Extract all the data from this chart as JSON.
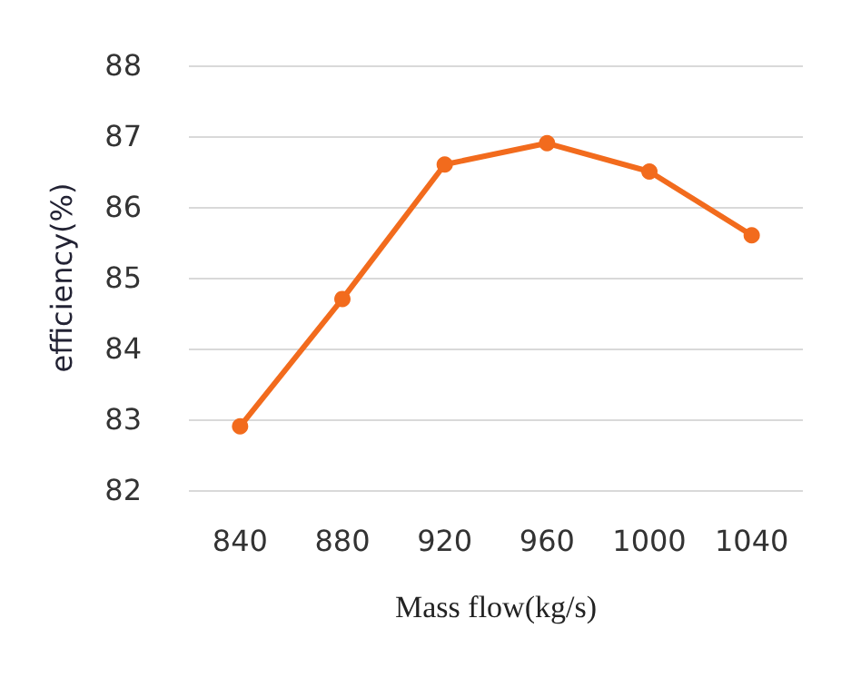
{
  "chart_data": {
    "type": "line",
    "xlabel": "Mass flow(kg/s)",
    "ylabel": "efficiency(%)",
    "categories": [
      "840",
      "880",
      "920",
      "960",
      "1000",
      "1040"
    ],
    "series": [
      {
        "color": "#f26b1d",
        "values": [
          82.9,
          84.7,
          86.6,
          86.9,
          86.5,
          85.6
        ]
      }
    ],
    "ylim": [
      82,
      88
    ],
    "yticks": [
      82,
      83,
      84,
      85,
      86,
      87,
      88
    ],
    "grid": "y",
    "marker": "circle",
    "line_style": "solid"
  }
}
